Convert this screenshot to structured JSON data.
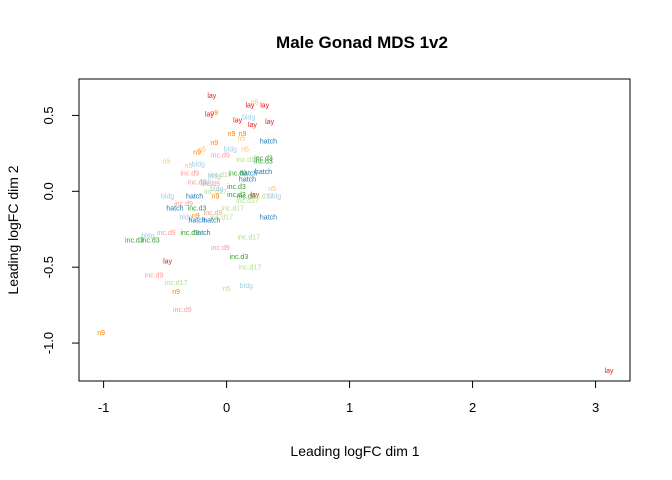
{
  "chart_data": {
    "type": "scatter",
    "title": "Male Gonad MDS 1v2",
    "xlabel": "Leading logFC dim 1",
    "ylabel": "Leading logFC dim 2",
    "xlim": [
      -1.2,
      3.28
    ],
    "ylim": [
      -1.25,
      0.74
    ],
    "xticks": [
      -1,
      0,
      1,
      2,
      3
    ],
    "yticks": [
      -1.0,
      -0.5,
      0.0,
      0.5
    ],
    "ytick_labels": [
      "-1.0",
      "-0.5",
      "0.0",
      "0.5"
    ],
    "grid": false,
    "legend": "none",
    "group_colors": {
      "lay": "#e41a1c",
      "n5": "#fdbf6f",
      "n9": "#ff7f00",
      "bldg": "#a6cee3",
      "hatch": "#1f78b4",
      "inc.d3": "#33a02c",
      "inc.d9": "#fb9a99",
      "inc.d17": "#b2df8a"
    },
    "points": [
      {
        "label": "lay",
        "x": -0.12,
        "y": 0.63
      },
      {
        "label": "n5",
        "x": 0.23,
        "y": 0.59
      },
      {
        "label": "lay",
        "x": 0.19,
        "y": 0.57
      },
      {
        "label": "lay",
        "x": 0.31,
        "y": 0.57
      },
      {
        "label": "n9",
        "x": -0.1,
        "y": 0.52
      },
      {
        "label": "lay",
        "x": -0.14,
        "y": 0.51
      },
      {
        "label": "bldg",
        "x": 0.18,
        "y": 0.49
      },
      {
        "label": "lay",
        "x": 0.09,
        "y": 0.47
      },
      {
        "label": "lay",
        "x": 0.35,
        "y": 0.46
      },
      {
        "label": "lay",
        "x": 0.21,
        "y": 0.44
      },
      {
        "label": "n9",
        "x": 0.04,
        "y": 0.38
      },
      {
        "label": "n9",
        "x": 0.13,
        "y": 0.38
      },
      {
        "label": "n5",
        "x": 0.12,
        "y": 0.35
      },
      {
        "label": "hatch",
        "x": 0.34,
        "y": 0.33
      },
      {
        "label": "n9",
        "x": -0.1,
        "y": 0.32
      },
      {
        "label": "n5",
        "x": -0.2,
        "y": 0.28
      },
      {
        "label": "bldg",
        "x": 0.03,
        "y": 0.28
      },
      {
        "label": "n5",
        "x": 0.15,
        "y": 0.28
      },
      {
        "label": "n9",
        "x": -0.24,
        "y": 0.26
      },
      {
        "label": "inc.d9",
        "x": -0.05,
        "y": 0.24
      },
      {
        "label": "inc.d17",
        "x": 0.17,
        "y": 0.21
      },
      {
        "label": "inc.d3",
        "x": 0.3,
        "y": 0.22
      },
      {
        "label": "inc.d3",
        "x": 0.3,
        "y": 0.2
      },
      {
        "label": "n5",
        "x": -0.49,
        "y": 0.2
      },
      {
        "label": "bldg",
        "x": -0.23,
        "y": 0.18
      },
      {
        "label": "n5",
        "x": -0.31,
        "y": 0.17
      },
      {
        "label": "inc.d9",
        "x": -0.3,
        "y": 0.12
      },
      {
        "label": "inc.d3",
        "x": 0.09,
        "y": 0.12
      },
      {
        "label": "hatch",
        "x": 0.18,
        "y": 0.12
      },
      {
        "label": "hatch",
        "x": 0.3,
        "y": 0.13
      },
      {
        "label": "bldg",
        "x": -0.1,
        "y": 0.1
      },
      {
        "label": "inc.d17",
        "x": -0.05,
        "y": 0.11
      },
      {
        "label": "hatch",
        "x": 0.17,
        "y": 0.08
      },
      {
        "label": "inc.d9",
        "x": -0.24,
        "y": 0.06
      },
      {
        "label": "bldg",
        "x": -0.16,
        "y": 0.06
      },
      {
        "label": "inc.d9",
        "x": -0.13,
        "y": 0.05
      },
      {
        "label": "inc.d3",
        "x": 0.08,
        "y": 0.03
      },
      {
        "label": "bldg",
        "x": -0.08,
        "y": 0.02
      },
      {
        "label": "inc.d17",
        "x": -0.09,
        "y": 0.0
      },
      {
        "label": "n5",
        "x": 0.37,
        "y": 0.02
      },
      {
        "label": "hatch",
        "x": -0.26,
        "y": -0.03
      },
      {
        "label": "n9",
        "x": -0.09,
        "y": -0.03
      },
      {
        "label": "inc.d3",
        "x": 0.08,
        "y": -0.02
      },
      {
        "label": "inc.d3",
        "x": 0.16,
        "y": -0.03
      },
      {
        "label": "lay",
        "x": 0.23,
        "y": -0.02
      },
      {
        "label": "bldg",
        "x": -0.48,
        "y": -0.03
      },
      {
        "label": "inc.d17",
        "x": 0.29,
        "y": -0.03
      },
      {
        "label": "bldg",
        "x": 0.39,
        "y": -0.03
      },
      {
        "label": "inc.d17",
        "x": 0.17,
        "y": -0.06
      },
      {
        "label": "inc.d9",
        "x": -0.35,
        "y": -0.08
      },
      {
        "label": "hatch",
        "x": -0.42,
        "y": -0.11
      },
      {
        "label": "inc.d3",
        "x": -0.24,
        "y": -0.11
      },
      {
        "label": "inc.d17",
        "x": 0.05,
        "y": -0.11
      },
      {
        "label": "inc.d9",
        "x": -0.11,
        "y": -0.14
      },
      {
        "label": "n9",
        "x": -0.25,
        "y": -0.16
      },
      {
        "label": "bldg",
        "x": -0.33,
        "y": -0.17
      },
      {
        "label": "inc.d17",
        "x": -0.04,
        "y": -0.17
      },
      {
        "label": "hatch",
        "x": 0.34,
        "y": -0.17
      },
      {
        "label": "hatch",
        "x": -0.24,
        "y": -0.19
      },
      {
        "label": "hatch",
        "x": -0.12,
        "y": -0.19
      },
      {
        "label": "inc.d9",
        "x": -0.49,
        "y": -0.27
      },
      {
        "label": "hatch",
        "x": -0.2,
        "y": -0.27
      },
      {
        "label": "inc.d3",
        "x": -0.3,
        "y": -0.27
      },
      {
        "label": "bldg",
        "x": -0.64,
        "y": -0.29
      },
      {
        "label": "inc.d17",
        "x": 0.18,
        "y": -0.3
      },
      {
        "label": "inc.d3",
        "x": -0.75,
        "y": -0.32
      },
      {
        "label": "inc.d3",
        "x": -0.62,
        "y": -0.32
      },
      {
        "label": "inc.d9",
        "x": -0.05,
        "y": -0.37
      },
      {
        "label": "inc.d3",
        "x": 0.1,
        "y": -0.43
      },
      {
        "label": "lay",
        "x": -0.48,
        "y": -0.46
      },
      {
        "label": "inc.d17",
        "x": 0.19,
        "y": -0.5
      },
      {
        "label": "inc.d9",
        "x": -0.59,
        "y": -0.55
      },
      {
        "label": "inc.d17",
        "x": -0.41,
        "y": -0.6
      },
      {
        "label": "bldg",
        "x": 0.16,
        "y": -0.62
      },
      {
        "label": "n5",
        "x": 0.0,
        "y": -0.64
      },
      {
        "label": "n9",
        "x": -0.41,
        "y": -0.66
      },
      {
        "label": "inc.d9",
        "x": -0.36,
        "y": -0.78
      },
      {
        "label": "n9",
        "x": -1.02,
        "y": -0.93
      },
      {
        "label": "lay",
        "x": 3.11,
        "y": -1.18
      }
    ]
  }
}
